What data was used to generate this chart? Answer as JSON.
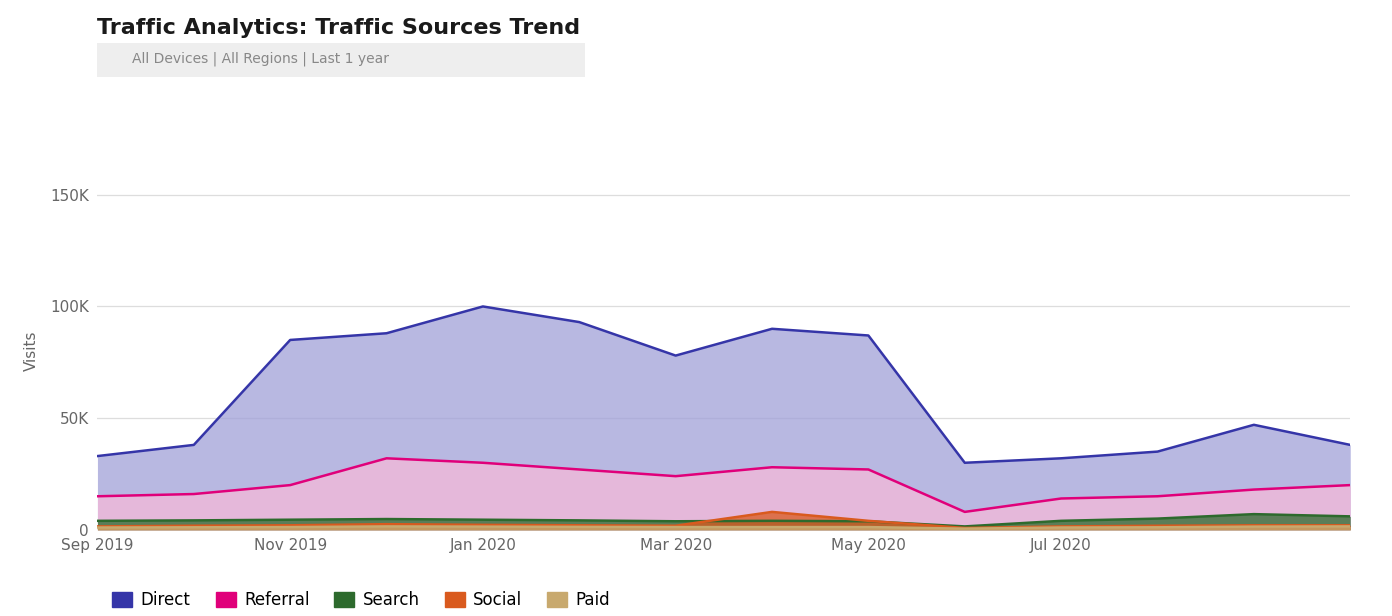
{
  "title": "Traffic Analytics: Traffic Sources Trend",
  "subtitle": "All Devices | All Regions | Last 1 year",
  "ylabel": "Visits",
  "ylim": [
    0,
    160000
  ],
  "yticks": [
    0,
    50000,
    100000,
    150000
  ],
  "ytick_labels": [
    "0",
    "50K",
    "100K",
    "150K"
  ],
  "background_color": "#ffffff",
  "x_labels": [
    "Sep 2019",
    "Nov 2019",
    "Jan 2020",
    "Mar 2020",
    "May 2020",
    "Jul 2020"
  ],
  "x_tick_indices": [
    0,
    2,
    4,
    6,
    8,
    10
  ],
  "series_order": [
    "Direct",
    "Referral",
    "Search",
    "Social",
    "Paid"
  ],
  "series": {
    "Direct": {
      "line_color": "#3535a8",
      "fill_color": "#a0a0d8",
      "values": [
        33000,
        38000,
        85000,
        88000,
        100000,
        93000,
        78000,
        90000,
        87000,
        30000,
        32000,
        35000,
        47000,
        38000
      ]
    },
    "Referral": {
      "line_color": "#e0007a",
      "fill_color": "#f5b8d8",
      "values": [
        15000,
        16000,
        20000,
        32000,
        30000,
        27000,
        24000,
        28000,
        27000,
        8000,
        14000,
        15000,
        18000,
        20000
      ]
    },
    "Search": {
      "line_color": "#2d6a2d",
      "fill_color": "#2d6a2d",
      "values": [
        4000,
        4200,
        4500,
        4800,
        4500,
        4200,
        3800,
        4000,
        3800,
        1500,
        4000,
        5000,
        7000,
        6000
      ]
    },
    "Social": {
      "line_color": "#d95a1e",
      "fill_color": "#d95a1e",
      "values": [
        1500,
        1800,
        2000,
        2500,
        2200,
        2000,
        1800,
        8000,
        4000,
        800,
        1500,
        1800,
        2000,
        2000
      ]
    },
    "Paid": {
      "line_color": "#c8a96e",
      "fill_color": "#c8a96e",
      "values": [
        1000,
        1100,
        1200,
        1500,
        1400,
        1300,
        1200,
        1200,
        1200,
        500,
        1000,
        1100,
        1400,
        1500
      ]
    }
  },
  "legend": [
    "Direct",
    "Referral",
    "Search",
    "Social",
    "Paid"
  ],
  "legend_colors": [
    "#3535a8",
    "#e0007a",
    "#2d6a2d",
    "#d95a1e",
    "#c8a96e"
  ]
}
